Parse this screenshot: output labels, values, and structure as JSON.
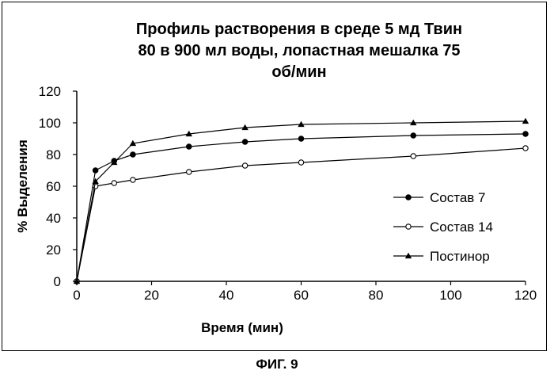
{
  "figure_label": "ФИГ. 9",
  "chart_data": {
    "type": "line",
    "title_lines": [
      "Профиль растворения в среде 5 мд Твин",
      "80 в 900 мл воды, лопастная мешалка 75",
      "об/мин"
    ],
    "xlabel": "Время (мин)",
    "ylabel": "% Выделения",
    "xlim": [
      0,
      120
    ],
    "ylim": [
      0,
      120
    ],
    "xticks": [
      0,
      20,
      40,
      60,
      80,
      100,
      120
    ],
    "yticks": [
      0,
      20,
      40,
      60,
      80,
      100,
      120
    ],
    "grid": false,
    "legend_position": "right",
    "x": [
      0,
      5,
      10,
      15,
      30,
      45,
      60,
      90,
      120
    ],
    "series": [
      {
        "name": "Состав 7",
        "marker": "filled-circle",
        "color": "#000000",
        "values": [
          0,
          70,
          76,
          80,
          85,
          88,
          90,
          92,
          93
        ]
      },
      {
        "name": "Состав 14",
        "marker": "open-circle",
        "color": "#000000",
        "values": [
          0,
          60,
          62,
          64,
          69,
          73,
          75,
          79,
          84
        ]
      },
      {
        "name": "Постинор",
        "marker": "filled-triangle",
        "color": "#000000",
        "values": [
          0,
          63,
          75,
          87,
          93,
          97,
          99,
          100,
          101
        ]
      }
    ]
  }
}
